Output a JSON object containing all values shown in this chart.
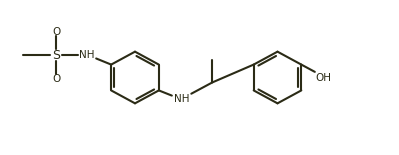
{
  "bg": "#ffffff",
  "lc": "#2b2b16",
  "lw": 1.5,
  "fs": 7.5,
  "figsize": [
    3.99,
    1.55
  ],
  "dpi": 100,
  "ring_r": 0.55,
  "xlim": [
    0,
    7.98
  ],
  "ylim": [
    -0.2,
    3.1
  ]
}
